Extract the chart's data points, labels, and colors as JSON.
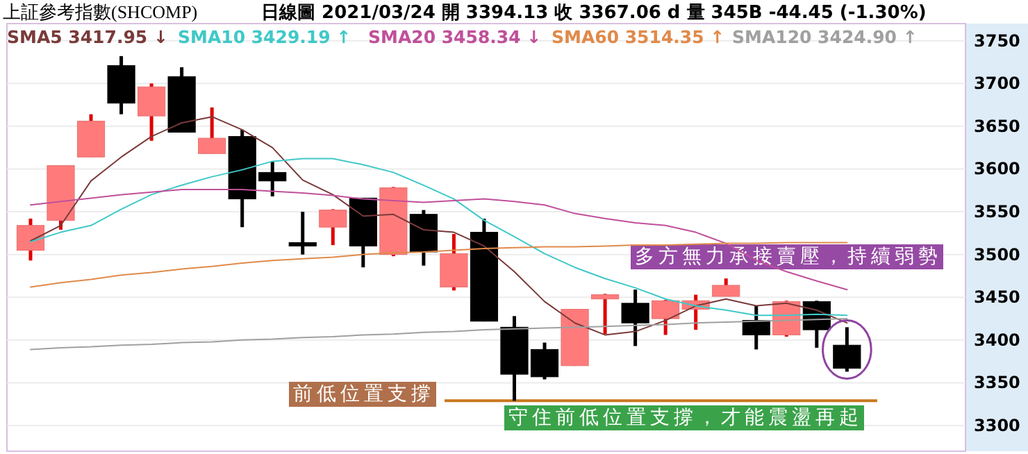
{
  "chart_data": {
    "type": "candlestick",
    "title": "上証參考指數(SHCOMP)",
    "subtitle": "日線圖  2021/03/24  開 3394.13  收 3367.06 d   量 345B  -44.45 (-1.30%)",
    "categories": [
      null,
      null,
      null,
      null,
      null,
      null,
      null,
      null,
      null,
      null,
      null,
      null,
      null,
      null,
      null,
      null,
      null,
      null,
      null,
      null,
      null,
      null,
      null,
      null,
      null,
      null,
      null,
      null
    ],
    "ohlc": [
      [
        3505,
        3542,
        3493,
        3534
      ],
      [
        3540,
        3604,
        3529,
        3604
      ],
      [
        3614,
        3664,
        3614,
        3656
      ],
      [
        3721,
        3732,
        3664,
        3677
      ],
      [
        3662,
        3700,
        3633,
        3696
      ],
      [
        3708,
        3719,
        3643,
        3643
      ],
      [
        3618,
        3672,
        3618,
        3636
      ],
      [
        3638,
        3646,
        3532,
        3565
      ],
      [
        3596,
        3609,
        3568,
        3586
      ],
      [
        3514,
        3550,
        3500,
        3512
      ],
      [
        3532,
        3553,
        3511,
        3552
      ],
      [
        3566,
        3566,
        3485,
        3510
      ],
      [
        3500,
        3579,
        3498,
        3578
      ],
      [
        3547,
        3552,
        3487,
        3503
      ],
      [
        3462,
        3524,
        3458,
        3501
      ],
      [
        3526,
        3542,
        3422,
        3422
      ],
      [
        3415,
        3428,
        3329,
        3360
      ],
      [
        3389,
        3397,
        3354,
        3357
      ],
      [
        3370,
        3436,
        3370,
        3436
      ],
      [
        3448,
        3454,
        3407,
        3453
      ],
      [
        3443,
        3459,
        3393,
        3420
      ],
      [
        3425,
        3447,
        3406,
        3446
      ],
      [
        3436,
        3453,
        3412,
        3446
      ],
      [
        3451,
        3472,
        3451,
        3464
      ],
      [
        3423,
        3440,
        3389,
        3406
      ],
      [
        3406,
        3446,
        3404,
        3445
      ],
      [
        3445,
        3446,
        3391,
        3412
      ],
      [
        3394,
        3415,
        3363,
        3367
      ]
    ],
    "colors": [
      "#ff7b7b",
      "#ff7b7b",
      "#ff7b7b",
      "#000000",
      "#ff7b7b",
      "#000000",
      "#ff7b7b",
      "#000000",
      "#000000",
      "#000000",
      "#ff7b7b",
      "#000000",
      "#ff7b7b",
      "#000000",
      "#ff7b7b",
      "#000000",
      "#000000",
      "#000000",
      "#ff7b7b",
      "#ff7b7b",
      "#000000",
      "#ff7b7b",
      "#ff7b7b",
      "#ff7b7b",
      "#000000",
      "#ff7b7b",
      "#000000",
      "#000000"
    ],
    "series": [
      {
        "type": "line",
        "name": "SMA5 3417.95 ↓",
        "color": "#7a3a3a",
        "values": [
          3516,
          3534,
          3586,
          3614,
          3638,
          3654,
          3661,
          3646,
          3625,
          3587,
          3570,
          3545,
          3547,
          3529,
          3526,
          3510,
          3480,
          3445,
          3420,
          3406,
          3410,
          3423,
          3440,
          3448,
          3440,
          3443,
          3435,
          3420
        ]
      },
      {
        "type": "line",
        "name": "SMA10 3429.19 ↑",
        "color": "#40c8c8",
        "values": [
          3515,
          3526,
          3534,
          3553,
          3570,
          3581,
          3591,
          3599,
          3609,
          3612,
          3612,
          3605,
          3596,
          3581,
          3565,
          3540,
          3521,
          3501,
          3485,
          3472,
          3461,
          3448,
          3440,
          3435,
          3429,
          3429,
          3430,
          3429
        ]
      },
      {
        "type": "line",
        "name": "SMA20 3458.34 ↓",
        "color": "#c0509a",
        "values": [
          3558,
          3562,
          3566,
          3570,
          3573,
          3576,
          3576,
          3576,
          3574,
          3572,
          3569,
          3565,
          3563,
          3561,
          3563,
          3565,
          3562,
          3558,
          3548,
          3542,
          3537,
          3534,
          3526,
          3513,
          3493,
          3480,
          3469,
          3459
        ]
      },
      {
        "type": "line",
        "name": "SMA60 3514.35 ↑",
        "color": "#e08a4a",
        "values": [
          3462,
          3467,
          3471,
          3476,
          3479,
          3483,
          3486,
          3490,
          3493,
          3495,
          3497,
          3500,
          3502,
          3503,
          3505,
          3507,
          3508,
          3509,
          3509,
          3510,
          3511,
          3511,
          3512,
          3513,
          3513,
          3514,
          3514,
          3514
        ]
      },
      {
        "type": "line",
        "name": "SMA120 3424.90 ↑",
        "color": "#a0a0a0",
        "values": [
          3389,
          3391,
          3392,
          3394,
          3395,
          3397,
          3398,
          3400,
          3401,
          3403,
          3404,
          3406,
          3407,
          3409,
          3410,
          3412,
          3413,
          3414,
          3415,
          3416,
          3417,
          3418,
          3420,
          3421,
          3422,
          3423,
          3424,
          3425
        ]
      }
    ],
    "ylim": [
      3270,
      3770
    ],
    "yticks": [
      3300,
      3350,
      3400,
      3450,
      3500,
      3550,
      3600,
      3650,
      3700,
      3750
    ],
    "grid": "y",
    "legend": "top left",
    "ref_lines": [
      {
        "axis": "y",
        "value": 3329,
        "color": "#c8781e"
      }
    ],
    "annotations": [
      "多方無力承接賣壓，持續弱勢",
      "前低位置支撐",
      "守住前低位置支撐，才能震盪再起"
    ]
  }
}
